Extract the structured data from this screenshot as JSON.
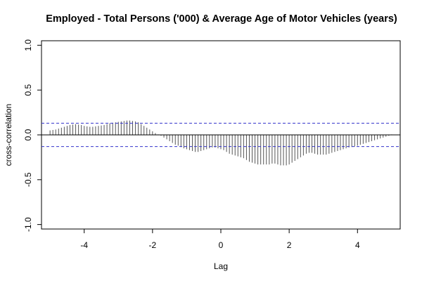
{
  "chart_data": {
    "type": "bar",
    "subtype": "cross-correlation lollipop (ccf)",
    "title": "Employed - Total Persons ('000) & Average Age of Motor Vehicles (years)",
    "xlabel": "Lag",
    "ylabel": "cross-correlation",
    "xlim": [
      -5.25,
      5.25
    ],
    "ylim": [
      -1.05,
      1.05
    ],
    "x_ticks": [
      -4,
      -2,
      0,
      2,
      4
    ],
    "x_tick_labels": [
      "-4",
      "-2",
      "0",
      "2",
      "4"
    ],
    "y_ticks": [
      -1.0,
      -0.5,
      0.0,
      0.5,
      1.0
    ],
    "y_tick_labels": [
      "-1.0",
      "-0.5",
      "0.0",
      "0.5",
      "1.0"
    ],
    "confidence_bound": 0.13,
    "colors": {
      "bars": "#555555",
      "zero_line": "#000000",
      "confidence_lines": "#3333cc"
    },
    "x": [
      -5.0,
      -4.9167,
      -4.8333,
      -4.75,
      -4.6667,
      -4.5833,
      -4.5,
      -4.4167,
      -4.3333,
      -4.25,
      -4.1667,
      -4.0833,
      -4.0,
      -3.9167,
      -3.8333,
      -3.75,
      -3.6667,
      -3.5833,
      -3.5,
      -3.4167,
      -3.3333,
      -3.25,
      -3.1667,
      -3.0833,
      -3.0,
      -2.9167,
      -2.8333,
      -2.75,
      -2.6667,
      -2.5833,
      -2.5,
      -2.4167,
      -2.3333,
      -2.25,
      -2.1667,
      -2.0833,
      -2.0,
      -1.9167,
      -1.8333,
      -1.75,
      -1.6667,
      -1.5833,
      -1.5,
      -1.4167,
      -1.3333,
      -1.25,
      -1.1667,
      -1.0833,
      -1.0,
      -0.9167,
      -0.8333,
      -0.75,
      -0.6667,
      -0.5833,
      -0.5,
      -0.4167,
      -0.3333,
      -0.25,
      -0.1667,
      -0.0833,
      0.0,
      0.0833,
      0.1667,
      0.25,
      0.3333,
      0.4167,
      0.5,
      0.5833,
      0.6667,
      0.75,
      0.8333,
      0.9167,
      1.0,
      1.0833,
      1.1667,
      1.25,
      1.3333,
      1.4167,
      1.5,
      1.5833,
      1.6667,
      1.75,
      1.8333,
      1.9167,
      2.0,
      2.0833,
      2.1667,
      2.25,
      2.3333,
      2.4167,
      2.5,
      2.5833,
      2.6667,
      2.75,
      2.8333,
      2.9167,
      3.0,
      3.0833,
      3.1667,
      3.25,
      3.3333,
      3.4167,
      3.5,
      3.5833,
      3.6667,
      3.75,
      3.8333,
      3.9167,
      4.0,
      4.0833,
      4.1667,
      4.25,
      4.3333,
      4.4167,
      4.5,
      4.5833,
      4.6667,
      4.75,
      4.8333,
      4.9167,
      5.0
    ],
    "values": [
      0.05,
      0.055,
      0.06,
      0.07,
      0.08,
      0.09,
      0.1,
      0.11,
      0.115,
      0.12,
      0.115,
      0.11,
      0.1,
      0.095,
      0.09,
      0.09,
      0.095,
      0.1,
      0.105,
      0.11,
      0.12,
      0.13,
      0.135,
      0.14,
      0.145,
      0.15,
      0.155,
      0.16,
      0.16,
      0.155,
      0.15,
      0.14,
      0.12,
      0.1,
      0.08,
      0.06,
      0.04,
      0.02,
      0.005,
      -0.01,
      -0.03,
      -0.05,
      -0.07,
      -0.09,
      -0.11,
      -0.12,
      -0.135,
      -0.15,
      -0.16,
      -0.17,
      -0.18,
      -0.19,
      -0.19,
      -0.18,
      -0.17,
      -0.16,
      -0.15,
      -0.14,
      -0.14,
      -0.15,
      -0.16,
      -0.17,
      -0.19,
      -0.21,
      -0.22,
      -0.23,
      -0.24,
      -0.25,
      -0.26,
      -0.28,
      -0.3,
      -0.31,
      -0.32,
      -0.33,
      -0.33,
      -0.33,
      -0.33,
      -0.33,
      -0.32,
      -0.32,
      -0.33,
      -0.34,
      -0.34,
      -0.34,
      -0.33,
      -0.31,
      -0.29,
      -0.27,
      -0.25,
      -0.23,
      -0.21,
      -0.2,
      -0.2,
      -0.21,
      -0.22,
      -0.22,
      -0.22,
      -0.22,
      -0.21,
      -0.2,
      -0.19,
      -0.18,
      -0.17,
      -0.16,
      -0.15,
      -0.14,
      -0.135,
      -0.13,
      -0.12,
      -0.11,
      -0.1,
      -0.09,
      -0.08,
      -0.07,
      -0.06,
      -0.05,
      -0.04,
      -0.03,
      -0.02,
      -0.01,
      0.005
    ]
  }
}
